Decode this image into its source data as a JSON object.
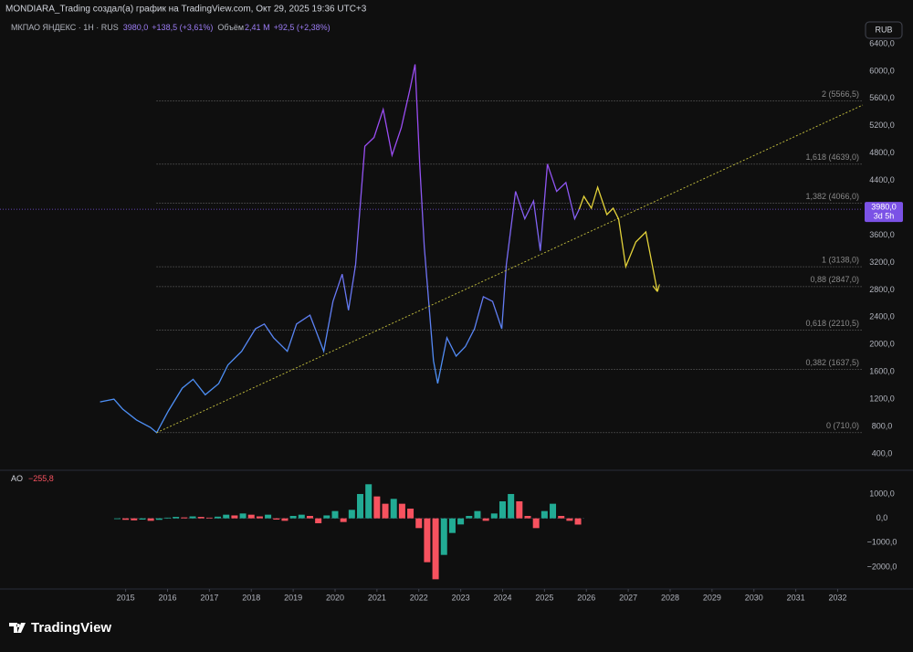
{
  "header": {
    "credit": "MONDIARA_Trading создал(а) график на TradingView.com, Окт 29, 2025 19:36 UTC+3",
    "symbol": "МКПАО ЯНДЕКС · 1Н · RUS",
    "change": "+138,5 (+3,61%)",
    "volume_label": "Объём",
    "volume": "2,41 M",
    "volume_change": "+92,5 (+2,38%)",
    "currency": "RUB",
    "footer": "TradingView"
  },
  "chart_data": [
    {
      "type": "line",
      "xlim": [
        2012.0,
        2032.6
      ],
      "xticks": [
        2015,
        2016,
        2017,
        2018,
        2019,
        2020,
        2021,
        2022,
        2023,
        2024,
        2025,
        2026,
        2027,
        2028,
        2029,
        2030,
        2031,
        2032
      ],
      "ylim": [
        226,
        6507
      ],
      "yticks": [
        {
          "value": 400,
          "label": "400,0"
        },
        {
          "value": 800,
          "label": "800,0"
        },
        {
          "value": 1200,
          "label": "1200,0"
        },
        {
          "value": 1600,
          "label": "1600,0"
        },
        {
          "value": 2000,
          "label": "2000,0"
        },
        {
          "value": 2400,
          "label": "2400,0"
        },
        {
          "value": 2800,
          "label": "2800,0"
        },
        {
          "value": 3200,
          "label": "3200,0"
        },
        {
          "value": 3600,
          "label": "3600,0"
        },
        {
          "value": 4000,
          "label": "4000,0"
        },
        {
          "value": 4400,
          "label": "4400,0"
        },
        {
          "value": 4800,
          "label": "4800,0"
        },
        {
          "value": 5200,
          "label": "5200,0"
        },
        {
          "value": 5600,
          "label": "5600,0"
        },
        {
          "value": 6000,
          "label": "6000,0"
        },
        {
          "value": 6400,
          "label": "6400,0"
        }
      ],
      "last_price": {
        "value": 3980,
        "label": "3980,0"
      },
      "countdown": "3d 5h",
      "last_price_color": "#7b52e6",
      "fib_start": 2015.74,
      "fib_color": "#8a8a8a",
      "fib_levels": [
        {
          "value": 5566.5,
          "label": "2 (5566,5)"
        },
        {
          "value": 4639.0,
          "label": "1,618 (4639,0)"
        },
        {
          "value": 4066.0,
          "label": "1,382 (4066,0)"
        },
        {
          "value": 3138.0,
          "label": "1 (3138,0)"
        },
        {
          "value": 2847.0,
          "label": "0,88 (2847,0)"
        },
        {
          "value": 2210.5,
          "label": "0,618 (2210,5)"
        },
        {
          "value": 1637.5,
          "label": "0,382 (1637,5)"
        },
        {
          "value": 710.0,
          "label": "0 (710,0)"
        }
      ],
      "series": [
        {
          "color": "#4d8ff5",
          "color_high": "#9a4cf2",
          "x": [
            2014.39,
            2014.72,
            2014.93,
            2015.26,
            2015.59,
            2015.74,
            2016.02,
            2016.35,
            2016.61,
            2016.9,
            2017.22,
            2017.44,
            2017.77,
            2018.1,
            2018.31,
            2018.53,
            2018.86,
            2019.08,
            2019.4,
            2019.73,
            2019.95,
            2020.17,
            2020.32,
            2020.49,
            2020.71,
            2020.93,
            2021.15,
            2021.36,
            2021.58,
            2021.8,
            2021.91,
            2022.02,
            2022.13,
            2022.35,
            2022.45,
            2022.67,
            2022.89,
            2023.11,
            2023.33,
            2023.54,
            2023.76,
            2023.98,
            2024.09,
            2024.31,
            2024.53,
            2024.74,
            2024.9,
            2025.07,
            2025.29,
            2025.51,
            2025.72,
            2025.83
          ],
          "values": [
            1160,
            1200,
            1055,
            895,
            787,
            710,
            1028,
            1360,
            1490,
            1265,
            1427,
            1700,
            1900,
            2230,
            2300,
            2100,
            1900,
            2300,
            2430,
            1900,
            2630,
            3030,
            2500,
            3170,
            4900,
            5030,
            5440,
            4770,
            5170,
            5770,
            6100,
            4640,
            3430,
            1760,
            1430,
            2100,
            1830,
            1970,
            2230,
            2700,
            2630,
            2230,
            3170,
            4240,
            3840,
            4100,
            3370,
            4640,
            4240,
            4370,
            3840,
            3980
          ]
        },
        {
          "color": "#c9c43f",
          "dash": true,
          "x": [
            2015.74,
            2032.6
          ],
          "values": [
            710,
            5505
          ]
        },
        {
          "color": "#e3d23a",
          "arrow": true,
          "x": [
            2025.83,
            2025.94,
            2026.12,
            2026.27,
            2026.49,
            2026.64,
            2026.77,
            2026.94,
            2027.18,
            2027.42,
            2027.69
          ],
          "values": [
            3980,
            4168,
            3995,
            4302,
            3901,
            3995,
            3834,
            3139,
            3500,
            3647,
            2792
          ]
        }
      ]
    },
    {
      "type": "bar",
      "title": "AO",
      "last_value": {
        "value": -255.8,
        "label": "−255,8"
      },
      "up_color": "#22ab94",
      "down_color": "#f7525f",
      "xlim": [
        2012.0,
        2032.6
      ],
      "ylim": [
        -2899,
        1861
      ],
      "yticks": [
        {
          "value": 1000,
          "label": "1000,0"
        },
        {
          "value": 0,
          "label": "0,0"
        },
        {
          "value": -1000,
          "label": "−1000,0"
        },
        {
          "value": -2000,
          "label": "−2000,0"
        }
      ],
      "x": [
        2014.8,
        2015.0,
        2015.2,
        2015.4,
        2015.6,
        2015.8,
        2016.0,
        2016.2,
        2016.4,
        2016.6,
        2016.8,
        2017.0,
        2017.2,
        2017.4,
        2017.6,
        2017.8,
        2018.0,
        2018.2,
        2018.4,
        2018.6,
        2018.8,
        2019.0,
        2019.2,
        2019.4,
        2019.6,
        2019.8,
        2020.0,
        2020.2,
        2020.4,
        2020.6,
        2020.8,
        2021.0,
        2021.2,
        2021.4,
        2021.6,
        2021.8,
        2022.0,
        2022.2,
        2022.4,
        2022.6,
        2022.8,
        2023.0,
        2023.2,
        2023.4,
        2023.6,
        2023.8,
        2024.0,
        2024.2,
        2024.4,
        2024.6,
        2024.8,
        2025.0,
        2025.2,
        2025.4,
        2025.6,
        2025.8
      ],
      "values": [
        -20,
        -60,
        -80,
        -50,
        -100,
        -60,
        30,
        60,
        40,
        80,
        60,
        30,
        70,
        150,
        120,
        200,
        150,
        80,
        150,
        -50,
        -100,
        100,
        150,
        100,
        -200,
        120,
        300,
        -150,
        350,
        1000,
        1400,
        900,
        600,
        800,
        600,
        400,
        -400,
        -1800,
        -2500,
        -1500,
        -600,
        -250,
        100,
        300,
        -100,
        200,
        700,
        1000,
        700,
        100,
        -400,
        300,
        600,
        100,
        -100,
        -255.8
      ]
    }
  ]
}
